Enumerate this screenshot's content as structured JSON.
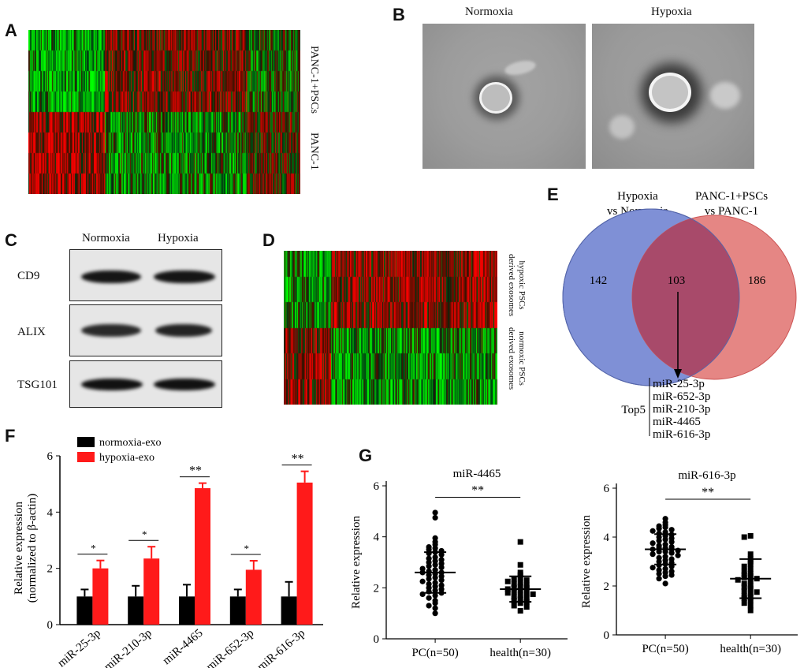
{
  "panels": {
    "A": {
      "label": "A",
      "rows": [
        "PANC-1+PSCs",
        "PANC-1"
      ]
    },
    "B": {
      "label": "B",
      "conditions": [
        "Normoxia",
        "Hypoxia"
      ]
    },
    "C": {
      "label": "C",
      "conditions": [
        "Normoxia",
        "Hypoxia"
      ],
      "bands": [
        "CD9",
        "ALIX",
        "TSG101"
      ]
    },
    "D": {
      "label": "D",
      "groups": [
        [
          "hypoxic PSCs",
          "derived exosomes"
        ],
        [
          "normoxic PSCs",
          "derived exosomes"
        ]
      ]
    },
    "E": {
      "label": "E",
      "set1": [
        "Hypoxia",
        "vs Normoxia"
      ],
      "set2": [
        "PANC-1+PSCs",
        "vs PANC-1"
      ],
      "only1": "142",
      "both": "103",
      "only2": "186",
      "top_label": "Top5",
      "top_list": [
        "miR-25-3p",
        "miR-652-3p",
        "miR-210-3p",
        "miR-4465",
        "miR-616-3p"
      ],
      "colors": {
        "set1": "#7f90d6",
        "set2": "#e58684",
        "overlap": "#a84a6a"
      }
    },
    "F": {
      "label": "F"
    },
    "G": {
      "label": "G"
    }
  },
  "chart_data": [
    {
      "type": "bar",
      "panel": "F",
      "ylabel": "Relative expression\n(normalized to β-actin)",
      "ylim": [
        0,
        6
      ],
      "yticks": [
        "0",
        "2",
        "4",
        "6"
      ],
      "categories": [
        "miR-25-3p",
        "miR-210-3p",
        "miR-4465",
        "miR-652-3p",
        "miR-616-3p"
      ],
      "series": [
        {
          "name": "normoxia-exo",
          "color": "#000000",
          "values": [
            1.0,
            1.0,
            1.0,
            1.0,
            1.0
          ],
          "errors": [
            0.25,
            0.38,
            0.42,
            0.25,
            0.52
          ]
        },
        {
          "name": "hypoxia-exo",
          "color": "#ff1a1a",
          "values": [
            2.0,
            2.35,
            4.85,
            1.95,
            5.05
          ],
          "errors": [
            0.28,
            0.42,
            0.18,
            0.32,
            0.4
          ]
        }
      ],
      "significance": [
        "*",
        "*",
        "**",
        "*",
        "**"
      ],
      "legend": "top-left"
    },
    {
      "type": "scatter",
      "panel": "G-left",
      "title": "miR-4465",
      "ylabel": "Relative expression",
      "ylim": [
        0,
        6
      ],
      "yticks": [
        "0",
        "2",
        "4",
        "6"
      ],
      "categories": [
        "PC(n=50)",
        "health(n=30)"
      ],
      "groups": [
        {
          "name": "PC(n=50)",
          "marker": "circle",
          "mean": 2.6,
          "sd": 0.8,
          "values": [
            4.95,
            4.75,
            3.95,
            3.8,
            3.7,
            3.6,
            3.55,
            3.5,
            3.45,
            3.4,
            3.35,
            3.3,
            3.2,
            3.15,
            3.1,
            3.05,
            3.0,
            2.95,
            2.9,
            2.85,
            2.8,
            2.75,
            2.7,
            2.65,
            2.6,
            2.6,
            2.55,
            2.5,
            2.45,
            2.4,
            2.35,
            2.3,
            2.25,
            2.2,
            2.15,
            2.1,
            2.05,
            2.0,
            1.95,
            1.9,
            1.85,
            1.8,
            1.75,
            1.7,
            1.6,
            1.5,
            1.4,
            1.3,
            1.2,
            1.0
          ]
        },
        {
          "name": "health(n=30)",
          "marker": "square",
          "mean": 1.95,
          "sd": 0.5,
          "values": [
            3.8,
            2.9,
            2.6,
            2.5,
            2.4,
            2.35,
            2.3,
            2.25,
            2.2,
            2.15,
            2.1,
            2.05,
            2.0,
            2.0,
            1.95,
            1.9,
            1.85,
            1.8,
            1.8,
            1.75,
            1.7,
            1.65,
            1.6,
            1.55,
            1.5,
            1.45,
            1.4,
            1.3,
            1.25,
            1.1
          ]
        }
      ],
      "significance": "**"
    },
    {
      "type": "scatter",
      "panel": "G-right",
      "title": "miR-616-3p",
      "ylabel": "Relative expression",
      "ylim": [
        0,
        6
      ],
      "yticks": [
        "0",
        "2",
        "4",
        "6"
      ],
      "categories": [
        "PC(n=50)",
        "health(n=30)"
      ],
      "groups": [
        {
          "name": "PC(n=50)",
          "marker": "circle",
          "mean": 3.5,
          "sd": 0.62,
          "values": [
            4.75,
            4.6,
            4.5,
            4.45,
            4.4,
            4.35,
            4.3,
            4.25,
            4.2,
            4.15,
            4.1,
            4.05,
            4.0,
            3.95,
            3.9,
            3.85,
            3.8,
            3.75,
            3.7,
            3.65,
            3.6,
            3.55,
            3.55,
            3.5,
            3.5,
            3.45,
            3.4,
            3.4,
            3.35,
            3.3,
            3.25,
            3.2,
            3.15,
            3.1,
            3.05,
            3.0,
            2.95,
            2.9,
            2.85,
            2.8,
            2.75,
            2.7,
            2.65,
            2.6,
            2.55,
            2.5,
            2.45,
            2.4,
            2.3,
            2.1
          ]
        },
        {
          "name": "health(n=30)",
          "marker": "square",
          "mean": 2.3,
          "sd": 0.8,
          "values": [
            4.05,
            4.0,
            3.3,
            3.1,
            3.0,
            2.9,
            2.8,
            2.7,
            2.6,
            2.5,
            2.45,
            2.4,
            2.35,
            2.3,
            2.25,
            2.2,
            2.1,
            2.0,
            1.95,
            1.9,
            1.8,
            1.75,
            1.7,
            1.6,
            1.55,
            1.5,
            1.4,
            1.3,
            1.2,
            1.0
          ]
        }
      ],
      "significance": "**"
    }
  ]
}
